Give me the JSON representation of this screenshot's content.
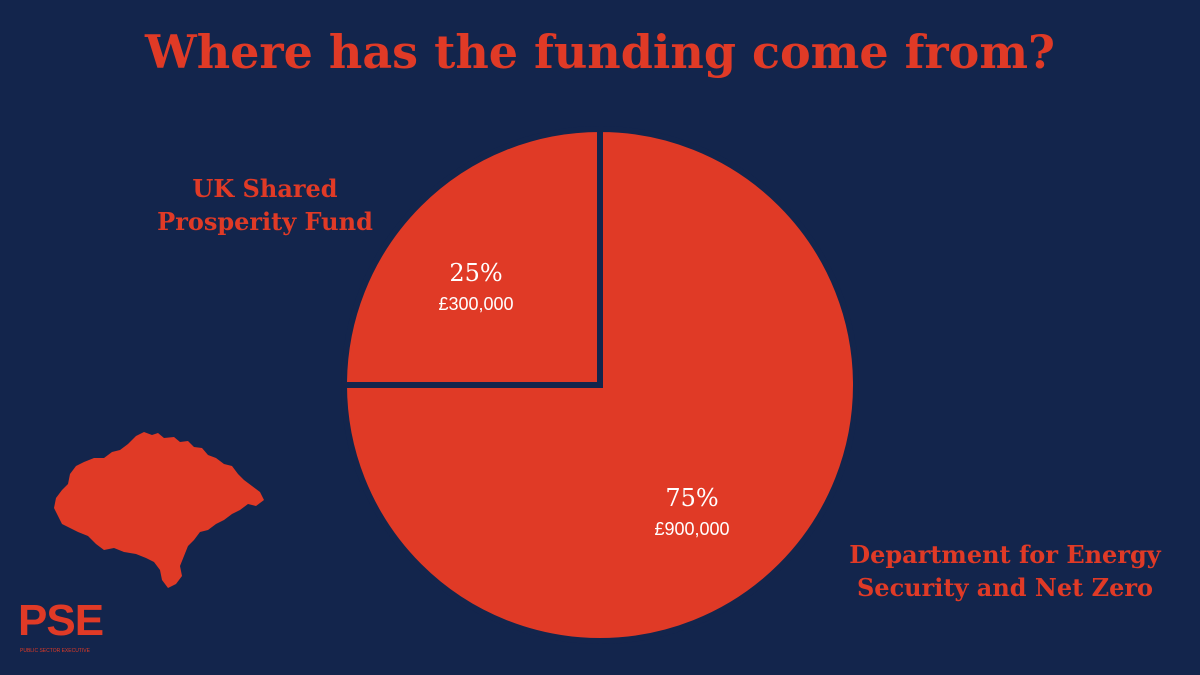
{
  "title": "Where has the funding come from?",
  "colors": {
    "background": "#13254c",
    "accent": "#e03a26",
    "slice_text": "#ffffff"
  },
  "logo": {
    "text": "PSE",
    "subtitle": "PUBLIC SECTOR EXECUTIVE"
  },
  "chart_data": {
    "type": "pie",
    "title": "Where has the funding come from?",
    "slices": [
      {
        "name": "UK Shared Prosperity Fund",
        "name_lines": [
          "UK Shared",
          "Prosperity Fund"
        ],
        "value": 25,
        "percent_label": "25%",
        "amount_label": "£300,000",
        "color": "#e03a26"
      },
      {
        "name": "Department for Energy Security and Net Zero",
        "name_lines": [
          "Department for Energy",
          "Security and Net Zero"
        ],
        "value": 75,
        "percent_label": "75%",
        "amount_label": "£900,000",
        "color": "#e03a26"
      }
    ]
  }
}
